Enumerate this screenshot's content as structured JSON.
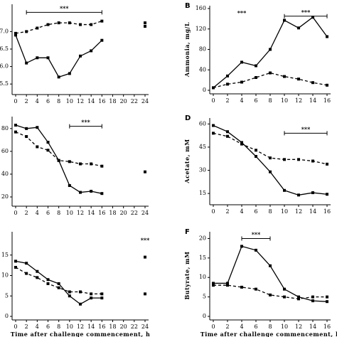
{
  "chart_data": [
    {
      "type": "line",
      "xlim": [
        0,
        24
      ],
      "xticks": [
        0,
        2,
        4,
        6,
        8,
        10,
        12,
        14,
        16,
        18,
        20,
        22,
        24
      ],
      "ylim": [
        5.3,
        7.7
      ],
      "yticks": [
        {
          "value": 5.5,
          "label": "5.5"
        },
        {
          "value": 6,
          "label": "6.0"
        },
        {
          "value": 6.5,
          "label": "6.5"
        },
        {
          "value": 7,
          "label": "7.0"
        }
      ],
      "series": [
        {
          "style": "solid",
          "color": "#000000",
          "x": [
            0,
            2,
            4,
            6,
            8,
            10,
            12,
            14,
            16
          ],
          "values": [
            6.9,
            6.1,
            6.25,
            6.25,
            5.7,
            5.8,
            6.3,
            6.45,
            6.75
          ]
        },
        {
          "style": "dashed",
          "color": "#000000",
          "x": [
            0,
            2,
            4,
            6,
            8,
            10,
            12,
            14,
            16
          ],
          "values": [
            6.95,
            7.0,
            7.1,
            7.2,
            7.25,
            7.25,
            7.2,
            7.2,
            7.3
          ]
        },
        {
          "style": "none",
          "color": "#000000",
          "x": [
            24
          ],
          "values": [
            7.25
          ]
        },
        {
          "style": "none",
          "color": "#000000",
          "x": [
            24
          ],
          "values": [
            7.15
          ]
        }
      ],
      "significance": [
        {
          "label": "***",
          "x": [
            2,
            16
          ],
          "y": 7.55
        }
      ]
    },
    {
      "type": "line",
      "panel_label": "B",
      "y_label": "Ammonia, mg/L",
      "xlim": [
        0,
        16
      ],
      "xticks": [
        0,
        2,
        4,
        6,
        8,
        10,
        12,
        14,
        16
      ],
      "ylim": [
        0,
        160
      ],
      "yticks": [
        0,
        40,
        80,
        120,
        160
      ],
      "series": [
        {
          "style": "solid",
          "color": "#000000",
          "x": [
            0,
            2,
            4,
            6,
            8,
            10,
            12,
            14,
            16
          ],
          "values": [
            5,
            28,
            55,
            48,
            80,
            137,
            122,
            143,
            105
          ]
        },
        {
          "style": "dashed",
          "color": "#000000",
          "x": [
            0,
            2,
            4,
            6,
            8,
            10,
            12,
            14,
            16
          ],
          "values": [
            5,
            12,
            16,
            25,
            34,
            27,
            22,
            15,
            10
          ]
        }
      ],
      "significance": [
        {
          "label": "***",
          "x": [
            4
          ],
          "y": 150
        },
        {
          "label": "***",
          "x": [
            10,
            16
          ],
          "y": 145
        }
      ]
    },
    {
      "type": "line",
      "xlim": [
        0,
        24
      ],
      "xticks": [
        0,
        2,
        4,
        6,
        8,
        10,
        12,
        14,
        16,
        18,
        20,
        22,
        24
      ],
      "ylim": [
        15,
        88
      ],
      "yticks": [
        20,
        40,
        60,
        80
      ],
      "series": [
        {
          "style": "solid",
          "color": "#000000",
          "x": [
            0,
            2,
            4,
            6,
            8,
            10,
            12,
            14,
            16
          ],
          "values": [
            83,
            80,
            81,
            68,
            52,
            30,
            24,
            25,
            23
          ]
        },
        {
          "style": "dashed",
          "color": "#000000",
          "x": [
            0,
            2,
            4,
            6,
            8,
            10,
            12,
            14,
            16
          ],
          "values": [
            77,
            73,
            64,
            61,
            52,
            51,
            49,
            49,
            47
          ]
        },
        {
          "style": "none",
          "color": "#000000",
          "x": [
            24
          ],
          "values": [
            42
          ]
        }
      ],
      "significance": [
        {
          "label": "***",
          "x": [
            10,
            16
          ],
          "y": 82
        }
      ]
    },
    {
      "type": "line",
      "panel_label": "D",
      "y_label": "Acetate, mM",
      "xlim": [
        0,
        16
      ],
      "xticks": [
        0,
        2,
        4,
        6,
        8,
        10,
        12,
        14,
        16
      ],
      "ylim": [
        10,
        62
      ],
      "yticks": [
        15,
        30,
        45,
        60
      ],
      "series": [
        {
          "style": "solid",
          "color": "#000000",
          "x": [
            0,
            2,
            4,
            6,
            8,
            10,
            12,
            14,
            16
          ],
          "values": [
            59,
            55,
            48,
            39,
            29,
            17,
            14,
            15.5,
            14.5
          ]
        },
        {
          "style": "dashed",
          "color": "#000000",
          "x": [
            0,
            2,
            4,
            6,
            8,
            10,
            12,
            14,
            16
          ],
          "values": [
            54,
            52,
            47,
            43,
            38,
            37,
            37,
            36,
            34
          ]
        }
      ],
      "significance": [
        {
          "label": "***",
          "x": [
            10,
            16
          ],
          "y": 54
        }
      ]
    },
    {
      "type": "line",
      "x_label": "Time after challenge commencement, h",
      "xlim": [
        0,
        24
      ],
      "xticks": [
        0,
        2,
        4,
        6,
        8,
        10,
        12,
        14,
        16,
        18,
        20,
        22,
        24
      ],
      "ylim": [
        0,
        20
      ],
      "yticks": [
        0,
        5,
        10,
        15
      ],
      "series": [
        {
          "style": "solid",
          "color": "#000000",
          "x": [
            0,
            2,
            4,
            6,
            8,
            10,
            12,
            14,
            16
          ],
          "values": [
            13.5,
            13,
            11,
            9,
            8,
            5,
            3,
            4.5,
            4.5
          ]
        },
        {
          "style": "dashed",
          "color": "#000000",
          "x": [
            0,
            2,
            4,
            6,
            8,
            10,
            12,
            14,
            16
          ],
          "values": [
            12,
            10.5,
            9.5,
            8,
            7,
            6,
            6,
            5.5,
            5.5
          ]
        },
        {
          "style": "none",
          "color": "#000000",
          "x": [
            24
          ],
          "values": [
            14.5
          ]
        },
        {
          "style": "none",
          "color": "#000000",
          "x": [
            24
          ],
          "values": [
            5.5
          ]
        }
      ],
      "significance": [
        {
          "label": "***",
          "x": [
            24
          ],
          "y": 18.5
        }
      ]
    },
    {
      "type": "line",
      "panel_label": "F",
      "y_label": "Butyrate, mM",
      "x_label": "Time after challenge commencement, h",
      "xlim": [
        0,
        16
      ],
      "xticks": [
        0,
        2,
        4,
        6,
        8,
        10,
        12,
        14,
        16
      ],
      "ylim": [
        0,
        21
      ],
      "yticks": [
        0,
        5,
        10,
        15,
        20
      ],
      "series": [
        {
          "style": "solid",
          "color": "#000000",
          "x": [
            0,
            2,
            4,
            6,
            8,
            10,
            12,
            14,
            16
          ],
          "values": [
            8.5,
            8.5,
            18,
            17,
            13,
            7,
            5,
            4,
            3.8
          ]
        },
        {
          "style": "dashed",
          "color": "#000000",
          "x": [
            0,
            2,
            4,
            6,
            8,
            10,
            12,
            14,
            16
          ],
          "values": [
            8,
            8,
            7.5,
            7,
            5.5,
            5,
            4.5,
            5,
            5
          ]
        }
      ],
      "significance": [
        {
          "label": "***",
          "x": [
            4,
            8
          ],
          "y": 20
        }
      ]
    }
  ]
}
